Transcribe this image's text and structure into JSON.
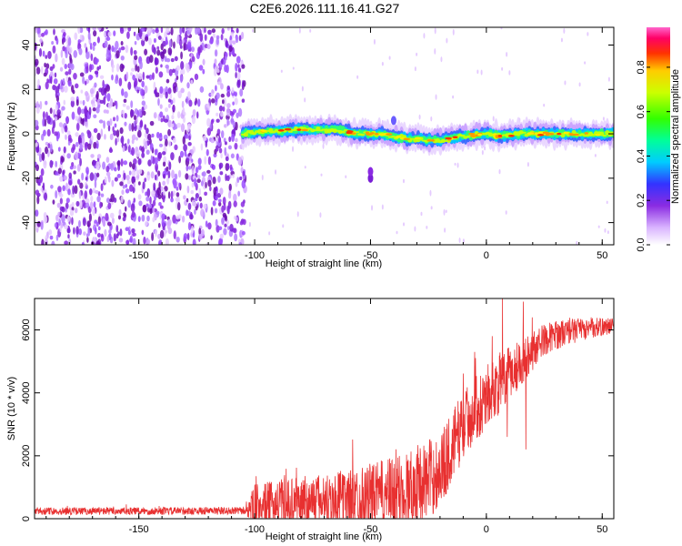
{
  "title": "C2E6.2026.111.16.41.G27",
  "colors": {
    "line": "#e83030",
    "noise": "#8a2be2",
    "axis": "#000000"
  },
  "chart_data": [
    {
      "type": "heatmap",
      "title": "C2E6.2026.111.16.41.G27",
      "xlabel": "Height of straight line (km)",
      "ylabel": "Frequency (Hz)",
      "xlim": [
        -195,
        55
      ],
      "ylim": [
        -50,
        48
      ],
      "xticks": [
        -150,
        -100,
        -50,
        0,
        50
      ],
      "yticks": [
        -40,
        -20,
        0,
        20,
        40
      ],
      "colorbar": {
        "label": "Normalized spectral amplitude",
        "range": [
          0,
          0.98
        ],
        "ticks": [
          "0.0",
          "0.2",
          "0.4",
          "0.6",
          "0.8"
        ],
        "tick_values": [
          0,
          0.2,
          0.4,
          0.6,
          0.8
        ]
      },
      "noise_region_km": [
        -195,
        -104
      ],
      "signal_start_km": -105,
      "signal_ridge": [
        {
          "x": -105,
          "f": 0
        },
        {
          "x": -95,
          "f": 1
        },
        {
          "x": -80,
          "f": 2
        },
        {
          "x": -65,
          "f": 2
        },
        {
          "x": -55,
          "f": 0
        },
        {
          "x": -45,
          "f": 0
        },
        {
          "x": -35,
          "f": -2
        },
        {
          "x": -20,
          "f": -3
        },
        {
          "x": -10,
          "f": -1
        },
        {
          "x": 0,
          "f": 0
        },
        {
          "x": 5,
          "f": -1
        },
        {
          "x": 15,
          "f": 0
        },
        {
          "x": 30,
          "f": 0
        },
        {
          "x": 55,
          "f": 0
        }
      ]
    },
    {
      "type": "line",
      "xlabel": "Height of straight line (km)",
      "ylabel": "SNR (10 * v/v)",
      "xlim": [
        -195,
        55
      ],
      "ylim": [
        0,
        7000
      ],
      "xticks": [
        -150,
        -100,
        -50,
        0,
        50
      ],
      "yticks": [
        0,
        2000,
        4000,
        6000
      ],
      "series": [
        {
          "name": "SNR",
          "trend": [
            {
              "x": -195,
              "y": 240
            },
            {
              "x": -150,
              "y": 240
            },
            {
              "x": -104,
              "y": 250
            },
            {
              "x": -100,
              "y": 400
            },
            {
              "x": -80,
              "y": 550
            },
            {
              "x": -60,
              "y": 650
            },
            {
              "x": -40,
              "y": 800
            },
            {
              "x": -30,
              "y": 1050
            },
            {
              "x": -20,
              "y": 1500
            },
            {
              "x": -10,
              "y": 3000
            },
            {
              "x": 0,
              "y": 3900
            },
            {
              "x": 5,
              "y": 4200
            },
            {
              "x": 15,
              "y": 5000
            },
            {
              "x": 25,
              "y": 5700
            },
            {
              "x": 35,
              "y": 5950
            },
            {
              "x": 55,
              "y": 6150
            }
          ],
          "noise_amplitude": [
            {
              "x": -195,
              "a": 120
            },
            {
              "x": -104,
              "a": 120
            },
            {
              "x": -100,
              "a": 700
            },
            {
              "x": -60,
              "a": 900
            },
            {
              "x": -30,
              "a": 1300
            },
            {
              "x": -10,
              "a": 1100
            },
            {
              "x": 10,
              "a": 900
            },
            {
              "x": 25,
              "a": 500
            },
            {
              "x": 55,
              "a": 250
            }
          ],
          "spikes": [
            {
              "x": 7,
              "y": 7000
            },
            {
              "x": 16,
              "y": 6900
            },
            {
              "x": 9,
              "y": 2600
            },
            {
              "x": 17,
              "y": 2200
            },
            {
              "x": -5,
              "y": 5300
            }
          ]
        }
      ]
    }
  ]
}
